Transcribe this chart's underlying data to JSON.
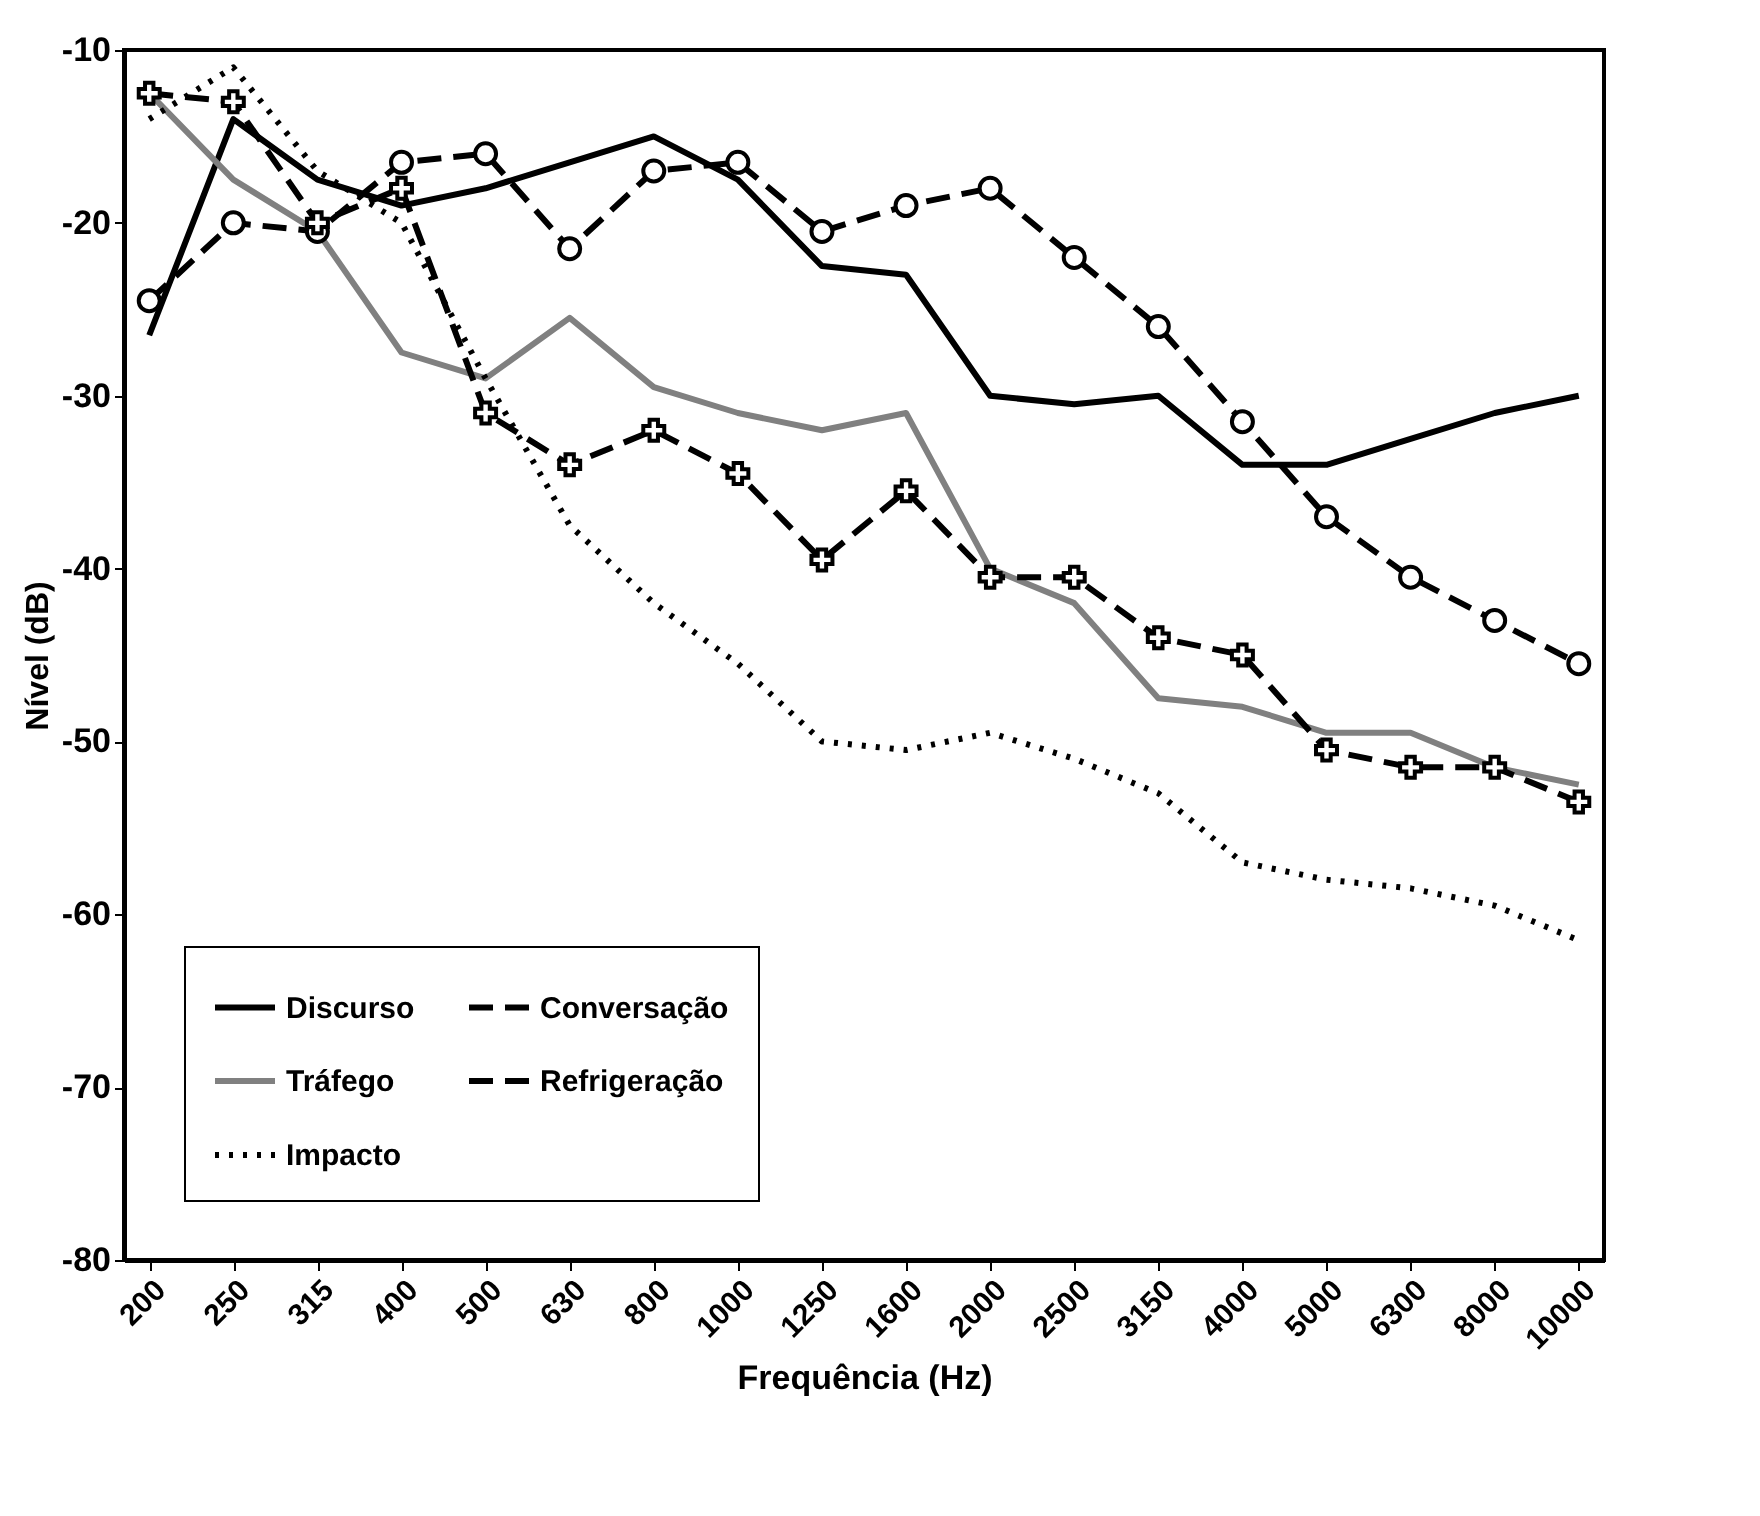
{
  "chart_data": {
    "type": "line",
    "xlabel": "Frequência (Hz)",
    "ylabel": "Nível (dB)",
    "categories": [
      "200",
      "250",
      "315",
      "400",
      "500",
      "630",
      "800",
      "1000",
      "1250",
      "1600",
      "2000",
      "2500",
      "3150",
      "4000",
      "5000",
      "6300",
      "8000",
      "10000"
    ],
    "series": [
      {
        "name": "Discurso",
        "color": "#000000",
        "line_style": "solid",
        "marker": "none",
        "values": [
          -26.5,
          -14,
          -17.5,
          -19,
          -18,
          -16.5,
          -15,
          -17.5,
          -22.5,
          -23,
          -30,
          -30.5,
          -30,
          -34,
          -34,
          -32.5,
          -31,
          -30
        ]
      },
      {
        "name": "Conversação",
        "color": "#000000",
        "line_style": "dashed",
        "marker": "circle",
        "values": [
          -24.5,
          -20,
          -20.5,
          -16.5,
          -16,
          -21.5,
          -17,
          -16.5,
          -20.5,
          -19,
          -18,
          -22,
          -26,
          -31.5,
          -37,
          -40.5,
          -43,
          -45.5
        ]
      },
      {
        "name": "Tráfego",
        "color": "#808080",
        "line_style": "solid",
        "marker": "none",
        "values": [
          -12.5,
          -17.5,
          -20.5,
          -27.5,
          -29,
          -25.5,
          -29.5,
          -31,
          -32,
          -31,
          -40,
          -42,
          -47.5,
          -48,
          -49.5,
          -49.5,
          -51.5,
          -52.5
        ]
      },
      {
        "name": "Refrigeração",
        "color": "#000000",
        "line_style": "dashed",
        "marker": "cross",
        "values": [
          -12.5,
          -13,
          -20,
          -18,
          -31,
          -34,
          -32,
          -34.5,
          -39.5,
          -35.5,
          -40.5,
          -40.5,
          -44,
          -45,
          -50.5,
          -51.5,
          -51.5,
          -53.5
        ]
      },
      {
        "name": "Impacto",
        "color": "#000000",
        "line_style": "dotted",
        "marker": "none",
        "values": [
          -14,
          -11,
          -17,
          -20,
          -29,
          -37.5,
          -42,
          -45.5,
          -50,
          -50.5,
          -49.5,
          -51,
          -53,
          -57,
          -58,
          -58.5,
          -59.5,
          -61.5
        ]
      }
    ],
    "ylim": [
      -80,
      -10
    ],
    "yticks": [
      -80,
      -70,
      -60,
      -50,
      -40,
      -30,
      -20,
      -10
    ],
    "grid": false,
    "legend": "bottom left"
  }
}
